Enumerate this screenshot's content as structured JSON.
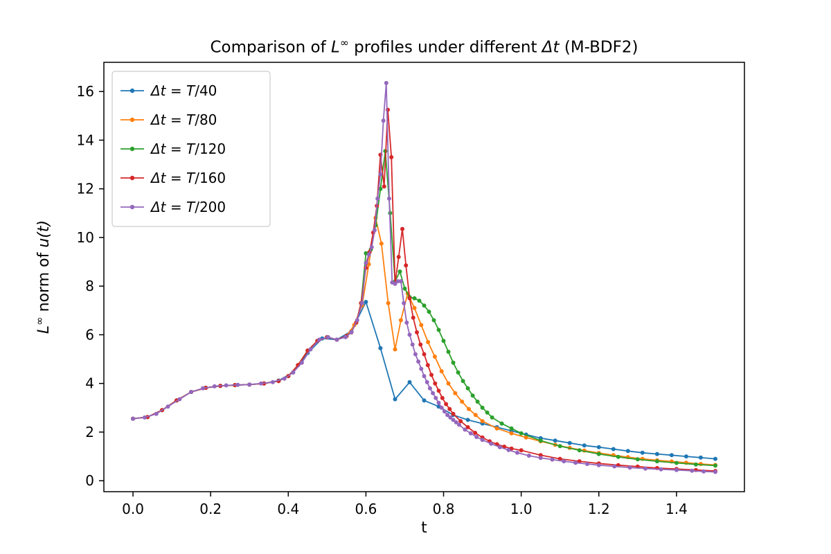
{
  "chart_data": {
    "type": "line",
    "title": "Comparison of L∞ profiles under different Δt (M-BDF2)",
    "title_parts": {
      "pre": "Comparison of ",
      "L": "L",
      "sup": "∞",
      "mid": " profiles under different ",
      "dt": "Δt",
      "post": " (M-BDF2)"
    },
    "xlabel": "t",
    "ylabel": "L∞ norm of u(t)",
    "ylabel_parts": {
      "L": "L",
      "sup": "∞",
      "mid": " norm of ",
      "u": "u(t)"
    },
    "xlim": [
      -0.075,
      1.575
    ],
    "ylim": [
      -0.45,
      17.2
    ],
    "xticks": [
      0.0,
      0.2,
      0.4,
      0.6,
      0.8,
      1.0,
      1.2,
      1.4
    ],
    "xtick_labels": [
      "0.0",
      "0.2",
      "0.4",
      "0.6",
      "0.8",
      "1.0",
      "1.2",
      "1.4"
    ],
    "yticks": [
      0,
      2,
      4,
      6,
      8,
      10,
      12,
      14,
      16
    ],
    "ytick_labels": [
      "0",
      "2",
      "4",
      "6",
      "8",
      "10",
      "12",
      "14",
      "16"
    ],
    "grid": false,
    "legend_position": "upper left",
    "marker": "o",
    "series": [
      {
        "name": "dt-T40",
        "label": "Δt = T/40",
        "color": "#1f77b4",
        "x": [
          0,
          0.0375,
          0.075,
          0.1125,
          0.15,
          0.1875,
          0.225,
          0.2625,
          0.3,
          0.3375,
          0.375,
          0.4125,
          0.45,
          0.4875,
          0.525,
          0.5625,
          0.6,
          0.6375,
          0.675,
          0.7125,
          0.75,
          0.7875,
          0.825,
          0.8625,
          0.9,
          0.9375,
          0.975,
          1.0125,
          1.05,
          1.0875,
          1.125,
          1.1625,
          1.2,
          1.2375,
          1.275,
          1.3125,
          1.35,
          1.3875,
          1.425,
          1.4625,
          1.5
        ],
        "y": [
          2.55,
          2.62,
          2.9,
          3.3,
          3.65,
          3.82,
          3.9,
          3.93,
          3.95,
          4.0,
          4.12,
          4.45,
          5.25,
          5.85,
          5.8,
          6.15,
          7.35,
          5.45,
          3.35,
          4.05,
          3.3,
          3.05,
          2.7,
          2.5,
          2.35,
          2.2,
          2.05,
          1.9,
          1.75,
          1.65,
          1.55,
          1.45,
          1.38,
          1.3,
          1.22,
          1.15,
          1.1,
          1.05,
          1.0,
          0.95,
          0.9
        ]
      },
      {
        "name": "dt-T80",
        "label": "Δt = T/80",
        "color": "#ff7f0e",
        "x": [
          0,
          0.0375,
          0.075,
          0.1125,
          0.15,
          0.1875,
          0.225,
          0.2625,
          0.3,
          0.3375,
          0.375,
          0.4,
          0.425,
          0.45,
          0.475,
          0.5,
          0.525,
          0.55,
          0.57,
          0.59,
          0.6075,
          0.625,
          0.64,
          0.6575,
          0.675,
          0.69,
          0.7075,
          0.725,
          0.7425,
          0.76,
          0.7775,
          0.795,
          0.8125,
          0.83,
          0.8475,
          0.865,
          0.8825,
          0.9,
          0.9375,
          0.975,
          1.0125,
          1.05,
          1.0875,
          1.125,
          1.1625,
          1.2,
          1.2375,
          1.275,
          1.3125,
          1.35,
          1.3875,
          1.425,
          1.4625,
          1.5
        ],
        "y": [
          2.55,
          2.62,
          2.9,
          3.3,
          3.65,
          3.82,
          3.9,
          3.93,
          3.95,
          4.0,
          4.1,
          4.3,
          4.75,
          5.35,
          5.75,
          5.9,
          5.8,
          5.95,
          6.4,
          7.2,
          8.9,
          10.8,
          9.75,
          7.3,
          5.4,
          6.6,
          7.7,
          7.1,
          6.4,
          5.7,
          5.1,
          4.5,
          4.0,
          3.6,
          3.25,
          2.95,
          2.7,
          2.45,
          2.15,
          1.95,
          1.78,
          1.62,
          1.48,
          1.35,
          1.24,
          1.14,
          1.05,
          0.97,
          0.9,
          0.84,
          0.79,
          0.74,
          0.69,
          0.65
        ]
      },
      {
        "name": "dt-T120",
        "label": "Δt = T/120",
        "color": "#2ca02c",
        "x": [
          0,
          0.0375,
          0.075,
          0.1125,
          0.15,
          0.1875,
          0.225,
          0.2625,
          0.3,
          0.3375,
          0.375,
          0.4,
          0.425,
          0.45,
          0.475,
          0.5,
          0.525,
          0.55,
          0.5625,
          0.575,
          0.5875,
          0.6,
          0.6125,
          0.625,
          0.6375,
          0.65,
          0.6625,
          0.675,
          0.6875,
          0.7,
          0.7125,
          0.725,
          0.7375,
          0.75,
          0.7625,
          0.775,
          0.7875,
          0.8,
          0.8125,
          0.825,
          0.8375,
          0.85,
          0.8625,
          0.875,
          0.8875,
          0.9,
          0.9125,
          0.925,
          0.95,
          0.975,
          1.0,
          1.05,
          1.1,
          1.15,
          1.2,
          1.25,
          1.3,
          1.35,
          1.4,
          1.45,
          1.5
        ],
        "y": [
          2.55,
          2.62,
          2.9,
          3.3,
          3.65,
          3.82,
          3.9,
          3.93,
          3.95,
          4.0,
          4.1,
          4.3,
          4.75,
          5.35,
          5.75,
          5.9,
          5.8,
          5.95,
          6.1,
          6.5,
          7.3,
          9.35,
          9.5,
          10.5,
          12.0,
          13.55,
          11.0,
          8.2,
          8.6,
          7.9,
          7.55,
          7.5,
          7.4,
          7.2,
          6.95,
          6.6,
          6.2,
          5.75,
          5.3,
          4.85,
          4.45,
          4.1,
          3.8,
          3.5,
          3.25,
          3.0,
          2.8,
          2.6,
          2.35,
          2.15,
          1.95,
          1.65,
          1.42,
          1.25,
          1.1,
          0.98,
          0.88,
          0.8,
          0.73,
          0.67,
          0.62
        ]
      },
      {
        "name": "dt-T160",
        "label": "Δt = T/160",
        "color": "#d62728",
        "x": [
          0,
          0.0375,
          0.075,
          0.1125,
          0.15,
          0.1875,
          0.225,
          0.2625,
          0.3,
          0.3375,
          0.375,
          0.4,
          0.425,
          0.45,
          0.475,
          0.5,
          0.525,
          0.55,
          0.5625,
          0.575,
          0.5875,
          0.6,
          0.6094,
          0.6188,
          0.6281,
          0.6375,
          0.6469,
          0.6563,
          0.6656,
          0.675,
          0.6844,
          0.6938,
          0.7031,
          0.7125,
          0.7219,
          0.7313,
          0.7406,
          0.75,
          0.7594,
          0.7688,
          0.7781,
          0.7875,
          0.7969,
          0.8063,
          0.8156,
          0.825,
          0.8438,
          0.8625,
          0.8813,
          0.9,
          0.9188,
          0.9375,
          0.9563,
          0.975,
          1.0,
          1.05,
          1.1,
          1.15,
          1.2,
          1.25,
          1.3,
          1.35,
          1.4,
          1.45,
          1.5
        ],
        "y": [
          2.55,
          2.62,
          2.9,
          3.3,
          3.65,
          3.82,
          3.9,
          3.93,
          3.95,
          4.0,
          4.1,
          4.3,
          4.75,
          5.35,
          5.75,
          5.9,
          5.8,
          5.95,
          6.1,
          6.5,
          7.3,
          8.75,
          9.4,
          10.2,
          11.3,
          13.4,
          12.1,
          15.25,
          13.3,
          8.1,
          9.2,
          10.35,
          8.85,
          7.5,
          6.7,
          6.1,
          5.6,
          5.2,
          4.75,
          4.35,
          4.0,
          3.7,
          3.4,
          3.15,
          2.95,
          2.75,
          2.45,
          2.2,
          1.97,
          1.78,
          1.62,
          1.5,
          1.4,
          1.32,
          1.25,
          1.05,
          0.9,
          0.8,
          0.71,
          0.64,
          0.58,
          0.52,
          0.48,
          0.44,
          0.4
        ]
      },
      {
        "name": "dt-T200",
        "label": "Δt = T/200",
        "color": "#9467bd",
        "x": [
          0,
          0.03,
          0.06,
          0.09,
          0.12,
          0.15,
          0.18,
          0.21,
          0.24,
          0.27,
          0.3,
          0.33,
          0.36,
          0.39,
          0.4125,
          0.435,
          0.4575,
          0.48,
          0.5025,
          0.525,
          0.5475,
          0.5625,
          0.5775,
          0.59,
          0.6,
          0.6075,
          0.615,
          0.6225,
          0.63,
          0.6375,
          0.645,
          0.6525,
          0.66,
          0.6675,
          0.675,
          0.6825,
          0.69,
          0.6975,
          0.705,
          0.7125,
          0.72,
          0.7275,
          0.735,
          0.7425,
          0.75,
          0.7575,
          0.765,
          0.7725,
          0.78,
          0.7875,
          0.795,
          0.8025,
          0.81,
          0.8175,
          0.825,
          0.8325,
          0.84,
          0.855,
          0.87,
          0.885,
          0.9,
          0.9225,
          0.945,
          0.9675,
          0.99,
          1.02,
          1.05,
          1.08,
          1.11,
          1.14,
          1.17,
          1.2,
          1.24,
          1.28,
          1.32,
          1.36,
          1.4,
          1.44,
          1.47,
          1.5
        ],
        "y": [
          2.55,
          2.6,
          2.75,
          3.05,
          3.35,
          3.65,
          3.8,
          3.88,
          3.92,
          3.94,
          3.95,
          4.0,
          4.05,
          4.2,
          4.45,
          4.85,
          5.4,
          5.8,
          5.9,
          5.8,
          5.9,
          6.1,
          6.6,
          7.3,
          8.95,
          9.3,
          9.6,
          10.3,
          11.6,
          12.6,
          14.8,
          16.35,
          11.6,
          8.15,
          8.1,
          8.2,
          8.2,
          7.3,
          6.5,
          6.0,
          5.6,
          5.2,
          4.9,
          4.6,
          4.3,
          4.05,
          3.8,
          3.6,
          3.4,
          3.2,
          3.0,
          2.85,
          2.7,
          2.6,
          2.5,
          2.4,
          2.3,
          2.1,
          1.95,
          1.8,
          1.68,
          1.52,
          1.38,
          1.26,
          1.15,
          1.03,
          0.94,
          0.87,
          0.8,
          0.74,
          0.69,
          0.64,
          0.59,
          0.54,
          0.5,
          0.47,
          0.44,
          0.41,
          0.38,
          0.36
        ]
      }
    ]
  }
}
